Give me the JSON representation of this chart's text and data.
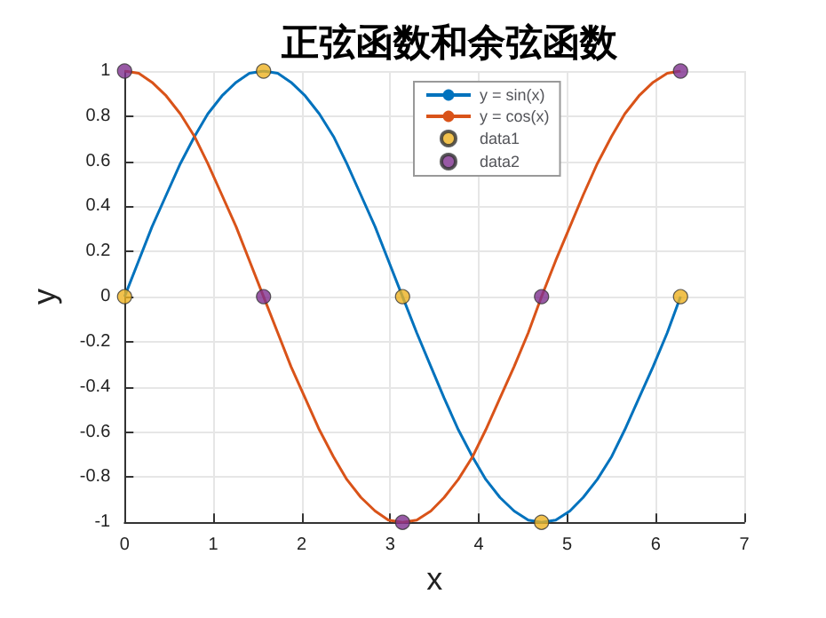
{
  "chart_data": {
    "type": "line",
    "title": "正弦函数和余弦函数",
    "xlabel": "x",
    "ylabel": "y",
    "x": [
      0,
      0.16,
      0.31,
      0.47,
      0.63,
      0.79,
      0.94,
      1.1,
      1.26,
      1.41,
      1.57,
      1.73,
      1.88,
      2.04,
      2.2,
      2.36,
      2.51,
      2.67,
      2.83,
      2.98,
      3.14,
      3.3,
      3.46,
      3.61,
      3.77,
      3.93,
      4.08,
      4.24,
      4.4,
      4.56,
      4.71,
      4.87,
      5.03,
      5.18,
      5.34,
      5.5,
      5.65,
      5.81,
      5.97,
      6.13,
      6.28
    ],
    "series": [
      {
        "name": "y = sin(x)",
        "marker": "none",
        "color": "#0072bd",
        "values": [
          0,
          0.16,
          0.31,
          0.45,
          0.59,
          0.71,
          0.81,
          0.89,
          0.95,
          0.99,
          1,
          0.99,
          0.95,
          0.89,
          0.81,
          0.71,
          0.59,
          0.45,
          0.31,
          0.16,
          0,
          -0.16,
          -0.31,
          -0.45,
          -0.59,
          -0.71,
          -0.81,
          -0.89,
          -0.95,
          -0.99,
          -1,
          -0.99,
          -0.95,
          -0.89,
          -0.81,
          -0.71,
          -0.59,
          -0.45,
          -0.31,
          -0.16,
          0
        ]
      },
      {
        "name": "y = cos(x)",
        "marker": "none",
        "color": "#d95319",
        "values": [
          1,
          0.99,
          0.95,
          0.89,
          0.81,
          0.71,
          0.59,
          0.45,
          0.31,
          0.16,
          0,
          -0.16,
          -0.31,
          -0.45,
          -0.59,
          -0.71,
          -0.81,
          -0.89,
          -0.95,
          -0.99,
          -1,
          -0.99,
          -0.95,
          -0.89,
          -0.81,
          -0.71,
          -0.59,
          -0.45,
          -0.31,
          -0.16,
          0,
          0.16,
          0.31,
          0.45,
          0.59,
          0.71,
          0.81,
          0.89,
          0.95,
          0.99,
          1
        ]
      },
      {
        "name": "data1",
        "type": "scatter",
        "marker": "circle",
        "color": "#edb120",
        "x": [
          0,
          1.57,
          3.14,
          4.71,
          6.28
        ],
        "values": [
          0,
          1,
          0,
          -1,
          0
        ]
      },
      {
        "name": "data2",
        "type": "scatter",
        "marker": "circle",
        "color": "#7e2f8e",
        "x": [
          0,
          1.57,
          3.14,
          4.71,
          6.28
        ],
        "values": [
          1,
          0,
          -1,
          0,
          1
        ]
      }
    ],
    "xlim": [
      0,
      7
    ],
    "xticks": [
      0,
      1,
      2,
      3,
      4,
      5,
      6,
      7
    ],
    "ylim": [
      -1,
      1
    ],
    "yticks": [
      -1,
      -0.8,
      -0.6,
      -0.4,
      -0.2,
      0,
      0.2,
      0.4,
      0.6,
      0.8,
      1
    ],
    "grid": true,
    "legend": "top"
  }
}
